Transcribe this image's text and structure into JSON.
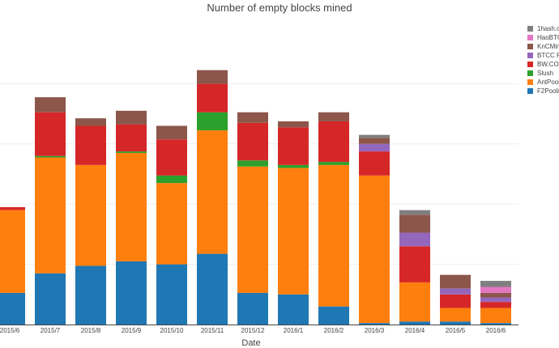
{
  "chart_data": {
    "type": "bar",
    "stacked": true,
    "title": "Number of empty blocks mined",
    "xlabel": "Date",
    "ylabel": "",
    "ylim": [
      0,
      190
    ],
    "grid": true,
    "legend_position": "right",
    "categories": [
      "2015/6",
      "2015/7",
      "2015/8",
      "2015/9",
      "2015/10",
      "2015/11",
      "2015/12",
      "2016/1",
      "2016/2",
      "2016/3",
      "2016/4",
      "2016/5",
      "2016/6"
    ],
    "series": [
      {
        "name": "F2Pool/",
        "color": "#1f77b4",
        "values": [
          21,
          34,
          39,
          42,
          40,
          47,
          21,
          20,
          12,
          1,
          2,
          2,
          1
        ]
      },
      {
        "name": "AntPool",
        "color": "#ff7f0e",
        "values": [
          55,
          77,
          67,
          72,
          54,
          82,
          84,
          84,
          94,
          98,
          26,
          9,
          10
        ]
      },
      {
        "name": "Slush",
        "color": "#2ca02c",
        "values": [
          0,
          1,
          0,
          1,
          5,
          12,
          4,
          2,
          2,
          0,
          0,
          0,
          0
        ]
      },
      {
        "name": "BW.CO",
        "color": "#d62728",
        "values": [
          2,
          29,
          26,
          18,
          24,
          19,
          25,
          25,
          27,
          16,
          24,
          9,
          4
        ]
      },
      {
        "name": "BTCC P",
        "color": "#9467bd",
        "values": [
          0,
          0,
          0,
          0,
          0,
          0,
          0,
          0,
          0,
          5,
          9,
          4,
          3
        ]
      },
      {
        "name": "KnCMin",
        "color": "#8c564b",
        "values": [
          0,
          10,
          5,
          9,
          9,
          9,
          7,
          4,
          6,
          4,
          12,
          9,
          3
        ]
      },
      {
        "name": "HaoBTC",
        "color": "#e377c2",
        "values": [
          0,
          0,
          0,
          0,
          0,
          0,
          0,
          0,
          0,
          0,
          0,
          0,
          4
        ]
      },
      {
        "name": "1hash.c",
        "color": "#7f7f7f",
        "values": [
          0,
          0,
          0,
          0,
          0,
          0,
          0,
          0,
          0,
          2,
          3,
          0,
          4
        ]
      }
    ]
  }
}
